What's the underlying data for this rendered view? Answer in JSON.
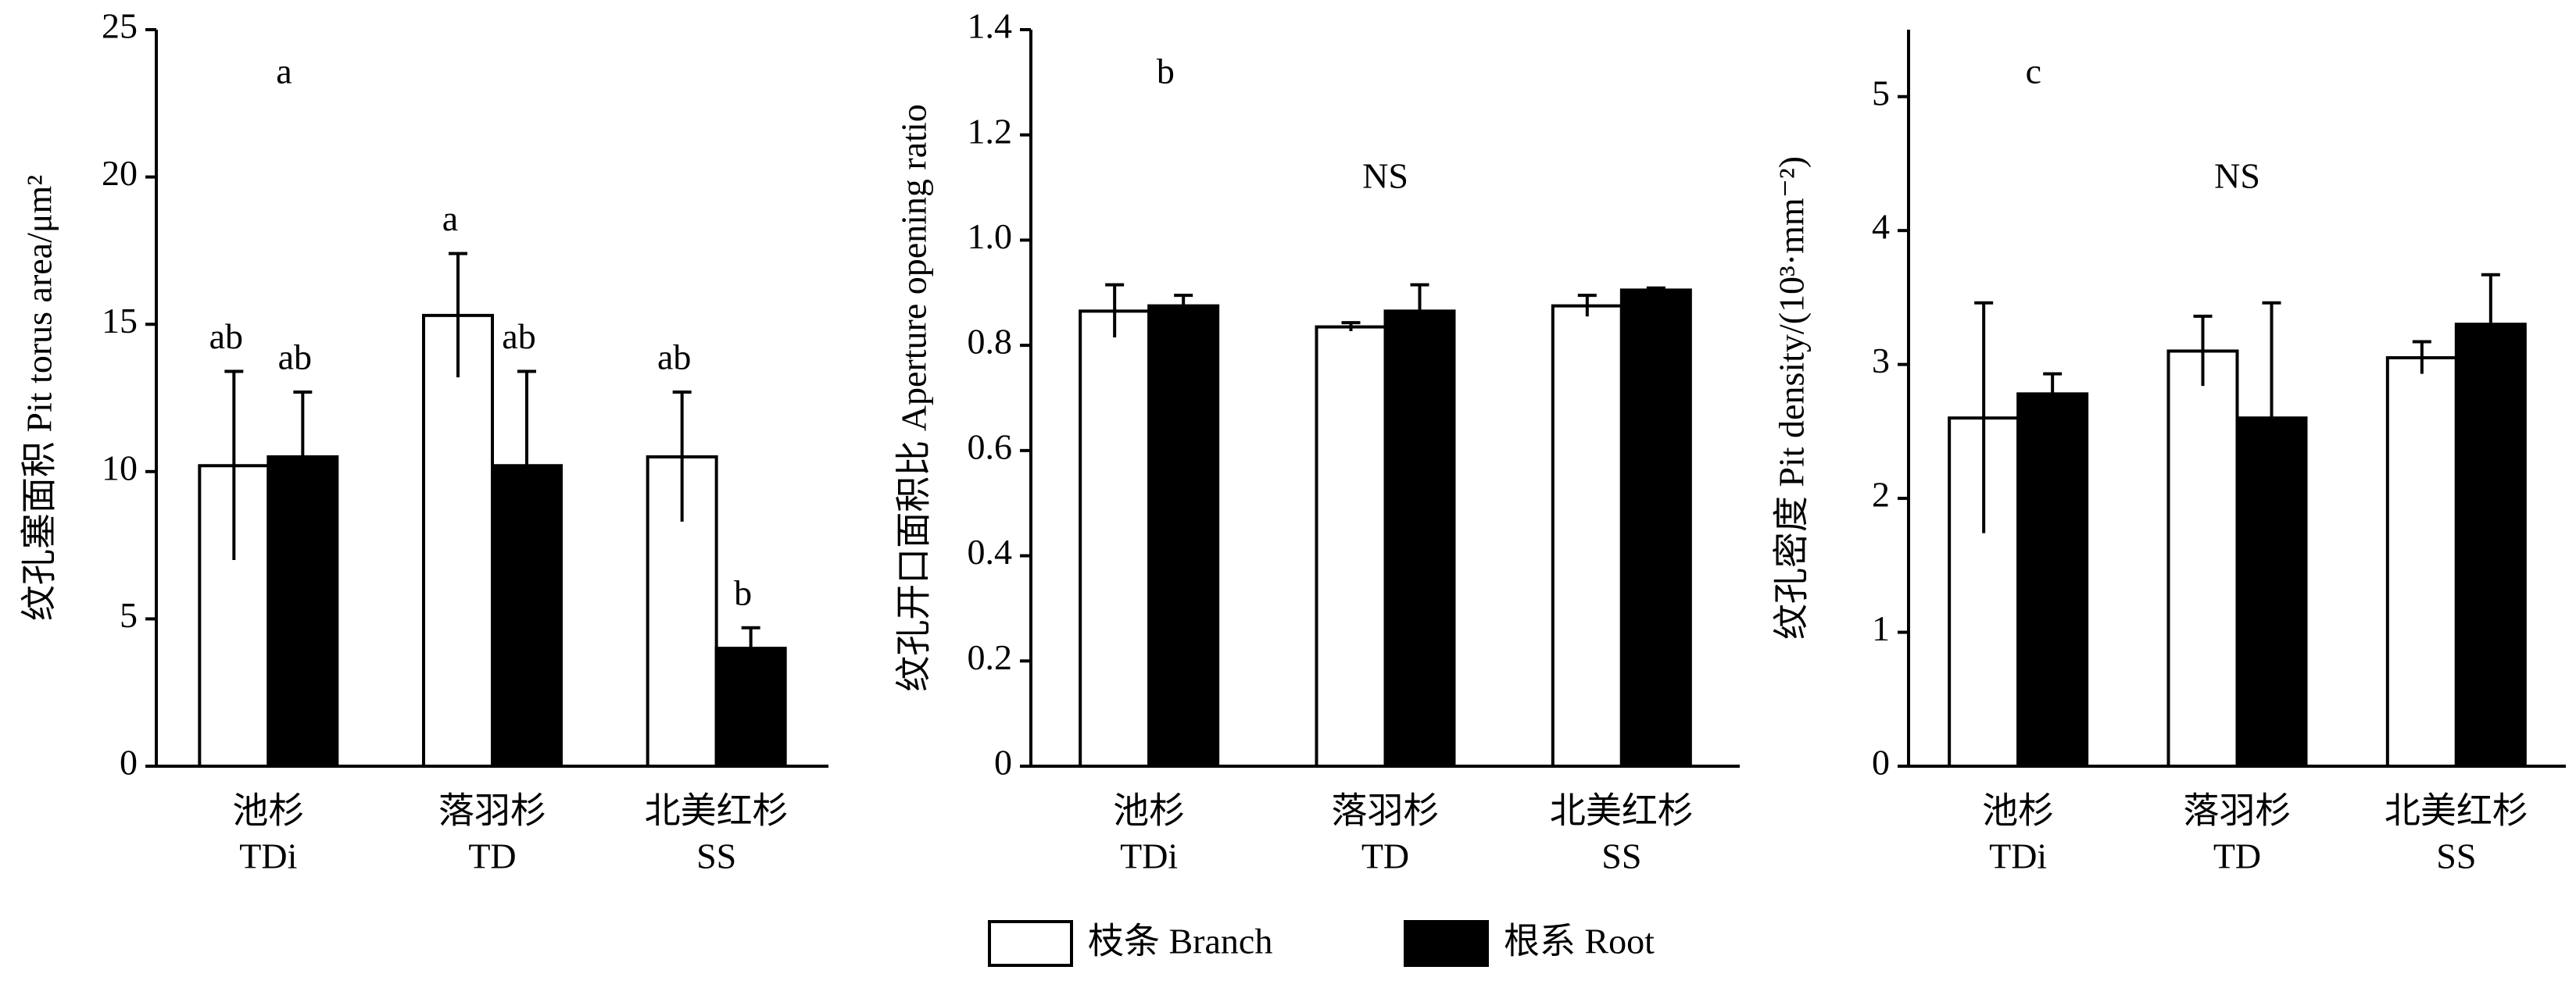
{
  "chart_data": [
    {
      "type": "bar",
      "panel_label": "a",
      "ylabel": "纹孔塞面积  Pit torus area/μm²",
      "categories": [
        "池杉",
        "落羽杉",
        "北美红杉"
      ],
      "categories_en": [
        "TDi",
        "TD",
        "SS"
      ],
      "ylim": [
        0,
        25
      ],
      "yticks": [
        0,
        5,
        10,
        15,
        20,
        25
      ],
      "series": [
        {
          "name": "枝条  Branch",
          "color": "#ffffff",
          "values": [
            10.2,
            15.3,
            10.5
          ],
          "errors": [
            3.2,
            2.1,
            2.2
          ],
          "letters": [
            "ab",
            "a",
            "ab"
          ]
        },
        {
          "name": "根系  Root",
          "color": "#000000",
          "values": [
            10.5,
            10.2,
            4.0
          ],
          "errors": [
            2.2,
            3.2,
            0.7
          ],
          "letters": [
            "ab",
            "ab",
            "b"
          ]
        }
      ]
    },
    {
      "type": "bar",
      "panel_label": "b",
      "annotation": "NS",
      "ylabel": "纹孔开口面积比  Aperture opening ratio",
      "categories": [
        "池杉",
        "落羽杉",
        "北美红杉"
      ],
      "categories_en": [
        "TDi",
        "TD",
        "SS"
      ],
      "ylim": [
        0,
        1.4
      ],
      "yticks": [
        0,
        0.2,
        0.4,
        0.6,
        0.8,
        {
          "value": 1,
          "label": "1.0"
        },
        1.2,
        1.4
      ],
      "series": [
        {
          "color": "#ffffff",
          "values": [
            0.865,
            0.835,
            0.875
          ],
          "errors": [
            0.05,
            0.008,
            0.02
          ]
        },
        {
          "color": "#000000",
          "values": [
            0.875,
            0.865,
            0.905
          ],
          "errors": [
            0.02,
            0.05,
            0.004
          ]
        }
      ]
    },
    {
      "type": "bar",
      "panel_label": "c",
      "annotation": "NS",
      "ylabel": "纹孔密度  Pit density/(10³·mm⁻²)",
      "categories": [
        "池杉",
        "落羽杉",
        "北美红杉"
      ],
      "categories_en": [
        "TDi",
        "TD",
        "SS"
      ],
      "ylim": [
        0,
        5.5
      ],
      "yticks": [
        0,
        1,
        2,
        3,
        4,
        5
      ],
      "series": [
        {
          "color": "#ffffff",
          "values": [
            2.6,
            3.1,
            3.05
          ],
          "errors": [
            0.86,
            0.26,
            0.12
          ]
        },
        {
          "color": "#000000",
          "values": [
            2.78,
            2.6,
            3.3
          ],
          "errors": [
            0.15,
            0.86,
            0.37
          ]
        }
      ]
    }
  ]
}
